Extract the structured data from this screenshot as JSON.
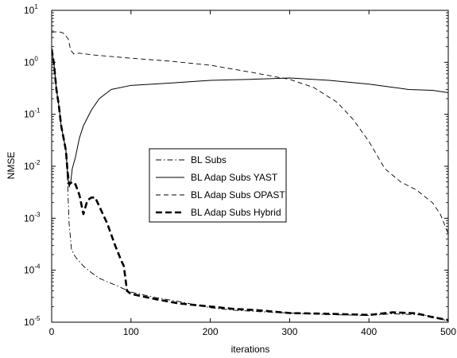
{
  "chart_data": {
    "type": "line",
    "title": "",
    "xlabel": "iterations",
    "ylabel": "NMSE",
    "xlim": [
      0,
      500
    ],
    "ylim": [
      1e-05,
      10
    ],
    "yscale": "log",
    "xticks": [
      0,
      100,
      200,
      300,
      400,
      500
    ],
    "xtick_labels": [
      "0",
      "100",
      "200",
      "300",
      "400",
      "500"
    ],
    "yticks": [
      1e-05,
      0.0001,
      0.001,
      0.01,
      0.1,
      1,
      10
    ],
    "ytick_labels": [
      {
        "base": "10",
        "exp": "-5"
      },
      {
        "base": "10",
        "exp": "-4"
      },
      {
        "base": "10",
        "exp": "-3"
      },
      {
        "base": "10",
        "exp": "-2"
      },
      {
        "base": "10",
        "exp": "-1"
      },
      {
        "base": "10",
        "exp": "0"
      },
      {
        "base": "10",
        "exp": "1"
      }
    ],
    "grid": false,
    "legend_position": "center",
    "series": [
      {
        "name": "BL Subs",
        "style": "dashdot",
        "color": "#000000",
        "points": [
          [
            0,
            1.8
          ],
          [
            3,
            0.9
          ],
          [
            6,
            0.3
          ],
          [
            9,
            0.15
          ],
          [
            12,
            0.06
          ],
          [
            15,
            0.035
          ],
          [
            18,
            0.02
          ],
          [
            20,
            0.005
          ],
          [
            22,
            0.0008
          ],
          [
            25,
            0.00025
          ],
          [
            30,
            0.00018
          ],
          [
            40,
            0.00012
          ],
          [
            50,
            9e-05
          ],
          [
            60,
            7e-05
          ],
          [
            80,
            5.2e-05
          ],
          [
            100,
            3.8e-05
          ],
          [
            130,
            3e-05
          ],
          [
            160,
            2.5e-05
          ],
          [
            200,
            1.9e-05
          ],
          [
            230,
            1.7e-05
          ],
          [
            260,
            1.6e-05
          ],
          [
            300,
            1.5e-05
          ],
          [
            350,
            1.4e-05
          ],
          [
            400,
            1.35e-05
          ],
          [
            430,
            1.45e-05
          ],
          [
            460,
            1.4e-05
          ],
          [
            480,
            1.3e-05
          ],
          [
            500,
            1.05e-05
          ]
        ]
      },
      {
        "name": "BL Adap Subs YAST",
        "style": "solid",
        "color": "#000000",
        "points": [
          [
            0,
            1.8
          ],
          [
            3,
            0.9
          ],
          [
            6,
            0.3
          ],
          [
            9,
            0.15
          ],
          [
            12,
            0.06
          ],
          [
            15,
            0.035
          ],
          [
            18,
            0.02
          ],
          [
            20,
            0.008
          ],
          [
            22,
            0.004
          ],
          [
            24,
            0.005
          ],
          [
            26,
            0.009
          ],
          [
            30,
            0.015
          ],
          [
            35,
            0.035
          ],
          [
            40,
            0.06
          ],
          [
            50,
            0.12
          ],
          [
            60,
            0.2
          ],
          [
            75,
            0.3
          ],
          [
            100,
            0.36
          ],
          [
            150,
            0.4
          ],
          [
            200,
            0.45
          ],
          [
            250,
            0.47
          ],
          [
            300,
            0.5
          ],
          [
            350,
            0.45
          ],
          [
            400,
            0.38
          ],
          [
            430,
            0.33
          ],
          [
            450,
            0.3
          ],
          [
            480,
            0.29
          ],
          [
            500,
            0.26
          ]
        ]
      },
      {
        "name": "BL Adap Subs OPAST",
        "style": "dashed",
        "color": "#000000",
        "points": [
          [
            0,
            3.8
          ],
          [
            8,
            3.9
          ],
          [
            14,
            3.7
          ],
          [
            18,
            3.2
          ],
          [
            21,
            2.8
          ],
          [
            24,
            1.7
          ],
          [
            28,
            1.45
          ],
          [
            35,
            1.5
          ],
          [
            50,
            1.4
          ],
          [
            100,
            1.2
          ],
          [
            150,
            1.05
          ],
          [
            200,
            0.88
          ],
          [
            250,
            0.65
          ],
          [
            300,
            0.47
          ],
          [
            330,
            0.33
          ],
          [
            360,
            0.17
          ],
          [
            380,
            0.08
          ],
          [
            400,
            0.03
          ],
          [
            420,
            0.009
          ],
          [
            440,
            0.005
          ],
          [
            460,
            0.0035
          ],
          [
            480,
            0.002
          ],
          [
            490,
            0.0012
          ],
          [
            500,
            0.0005
          ]
        ]
      },
      {
        "name": "BL Adap Subs Hybrid",
        "style": "dashed-bold",
        "color": "#000000",
        "points": [
          [
            0,
            1.8
          ],
          [
            3,
            0.9
          ],
          [
            6,
            0.3
          ],
          [
            9,
            0.15
          ],
          [
            12,
            0.06
          ],
          [
            15,
            0.035
          ],
          [
            18,
            0.02
          ],
          [
            20,
            0.008
          ],
          [
            22,
            0.0045
          ],
          [
            26,
            0.005
          ],
          [
            30,
            0.0045
          ],
          [
            35,
            0.0028
          ],
          [
            40,
            0.0012
          ],
          [
            45,
            0.0022
          ],
          [
            50,
            0.0025
          ],
          [
            55,
            0.0025
          ],
          [
            60,
            0.0017
          ],
          [
            70,
            0.0008
          ],
          [
            80,
            0.0003
          ],
          [
            88,
            0.00015
          ],
          [
            91,
            0.00012
          ],
          [
            95,
            4e-05
          ],
          [
            100,
            3.5e-05
          ],
          [
            130,
            2.8e-05
          ],
          [
            160,
            2.3e-05
          ],
          [
            200,
            2e-05
          ],
          [
            230,
            1.8e-05
          ],
          [
            260,
            1.7e-05
          ],
          [
            300,
            1.5e-05
          ],
          [
            350,
            1.45e-05
          ],
          [
            400,
            1.38e-05
          ],
          [
            430,
            1.55e-05
          ],
          [
            460,
            1.48e-05
          ],
          [
            480,
            1.25e-05
          ],
          [
            500,
            1.1e-05
          ]
        ]
      }
    ]
  }
}
